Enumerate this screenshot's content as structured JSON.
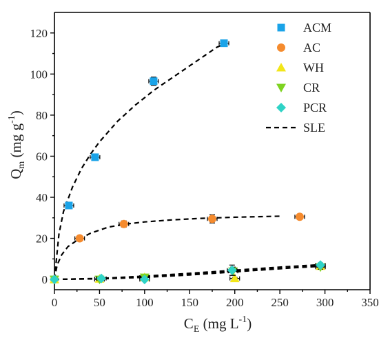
{
  "chart_data": {
    "type": "scatter",
    "x_axis": {
      "label_main": "C",
      "label_sub": "E",
      "label_units": "(mg L",
      "label_sup": "-1",
      "label_close": ")",
      "range": [
        0,
        350
      ],
      "ticks": [
        0,
        50,
        100,
        150,
        200,
        250,
        300,
        350
      ]
    },
    "y_axis": {
      "label_main": "Q",
      "label_sub": "m",
      "label_units": "(mg g",
      "label_sup": "-1",
      "label_close": ")",
      "range": [
        -5,
        130
      ],
      "ticks": [
        0,
        20,
        40,
        60,
        80,
        100,
        120
      ]
    },
    "grid": false,
    "legend_position": "top-right",
    "series": [
      {
        "name": "ACM",
        "marker": "square",
        "color": "#1AA3E8",
        "points": [
          {
            "x": 0,
            "y": 0,
            "err": 0
          },
          {
            "x": 16,
            "y": 36,
            "err": 1
          },
          {
            "x": 45,
            "y": 59.5,
            "err": 1.5
          },
          {
            "x": 110,
            "y": 96.5,
            "err": 2
          },
          {
            "x": 188,
            "y": 115,
            "err": 1
          }
        ],
        "fit": [
          [
            0,
            0
          ],
          [
            5,
            22
          ],
          [
            10,
            33
          ],
          [
            20,
            45
          ],
          [
            30,
            54
          ],
          [
            40,
            61
          ],
          [
            50,
            67
          ],
          [
            60,
            72
          ],
          [
            70,
            77
          ],
          [
            80,
            81
          ],
          [
            90,
            85
          ],
          [
            100,
            88.5
          ],
          [
            110,
            92
          ],
          [
            120,
            95
          ],
          [
            130,
            98
          ],
          [
            140,
            101
          ],
          [
            150,
            104
          ],
          [
            160,
            107
          ],
          [
            170,
            110
          ],
          [
            180,
            113
          ],
          [
            190,
            115
          ]
        ]
      },
      {
        "name": "AC",
        "marker": "circle",
        "color": "#F58B2E",
        "points": [
          {
            "x": 0,
            "y": 0,
            "err": 0
          },
          {
            "x": 28,
            "y": 20,
            "err": 1
          },
          {
            "x": 77,
            "y": 27,
            "err": 1.5
          },
          {
            "x": 175,
            "y": 29.5,
            "err": 2
          },
          {
            "x": 272,
            "y": 30.5,
            "err": 1
          }
        ],
        "fit": [
          [
            0,
            0
          ],
          [
            3,
            7
          ],
          [
            8,
            12
          ],
          [
            15,
            16
          ],
          [
            25,
            19
          ],
          [
            40,
            22.5
          ],
          [
            60,
            25.5
          ],
          [
            80,
            27
          ],
          [
            100,
            28
          ],
          [
            130,
            29
          ],
          [
            160,
            29.7
          ],
          [
            200,
            30.3
          ],
          [
            250,
            30.8
          ]
        ]
      },
      {
        "name": "WH",
        "marker": "triangle-up",
        "color": "#F2E619",
        "points": [
          {
            "x": 0,
            "y": 0,
            "err": 0
          },
          {
            "x": 50,
            "y": 0.3,
            "err": 0.5
          },
          {
            "x": 100,
            "y": 1,
            "err": 0.8
          },
          {
            "x": 200,
            "y": 0.5,
            "err": 0.5
          },
          {
            "x": 295,
            "y": 6.5,
            "err": 1
          }
        ],
        "fit": [
          [
            0,
            0
          ],
          [
            50,
            0.3
          ],
          [
            100,
            1
          ],
          [
            150,
            2.2
          ],
          [
            200,
            3.7
          ],
          [
            250,
            5.2
          ],
          [
            295,
            6.7
          ]
        ]
      },
      {
        "name": "CR",
        "marker": "triangle-down",
        "color": "#7ED321",
        "points": [
          {
            "x": 0,
            "y": 0,
            "err": 0
          },
          {
            "x": 50,
            "y": 0,
            "err": 0.5
          },
          {
            "x": 100,
            "y": 1,
            "err": 1
          },
          {
            "x": 198,
            "y": 4,
            "err": 2
          },
          {
            "x": 295,
            "y": 6,
            "err": 1
          }
        ],
        "fit": [
          [
            0,
            0
          ],
          [
            50,
            0.4
          ],
          [
            100,
            1.3
          ],
          [
            150,
            2.6
          ],
          [
            200,
            4
          ],
          [
            250,
            5.3
          ],
          [
            295,
            6.4
          ]
        ]
      },
      {
        "name": "PCR",
        "marker": "diamond",
        "color": "#2FD3C6",
        "points": [
          {
            "x": 0,
            "y": 0,
            "err": 0
          },
          {
            "x": 52,
            "y": 0.5,
            "err": 0.5
          },
          {
            "x": 100,
            "y": 0,
            "err": 0.5
          },
          {
            "x": 197,
            "y": 4.5,
            "err": 2.5
          },
          {
            "x": 295,
            "y": 7,
            "err": 1
          }
        ],
        "fit": [
          [
            0,
            0
          ],
          [
            50,
            0.5
          ],
          [
            100,
            1.6
          ],
          [
            150,
            3
          ],
          [
            200,
            4.5
          ],
          [
            250,
            6
          ],
          [
            295,
            7.2
          ]
        ]
      }
    ],
    "fit_legend": "SLE"
  }
}
